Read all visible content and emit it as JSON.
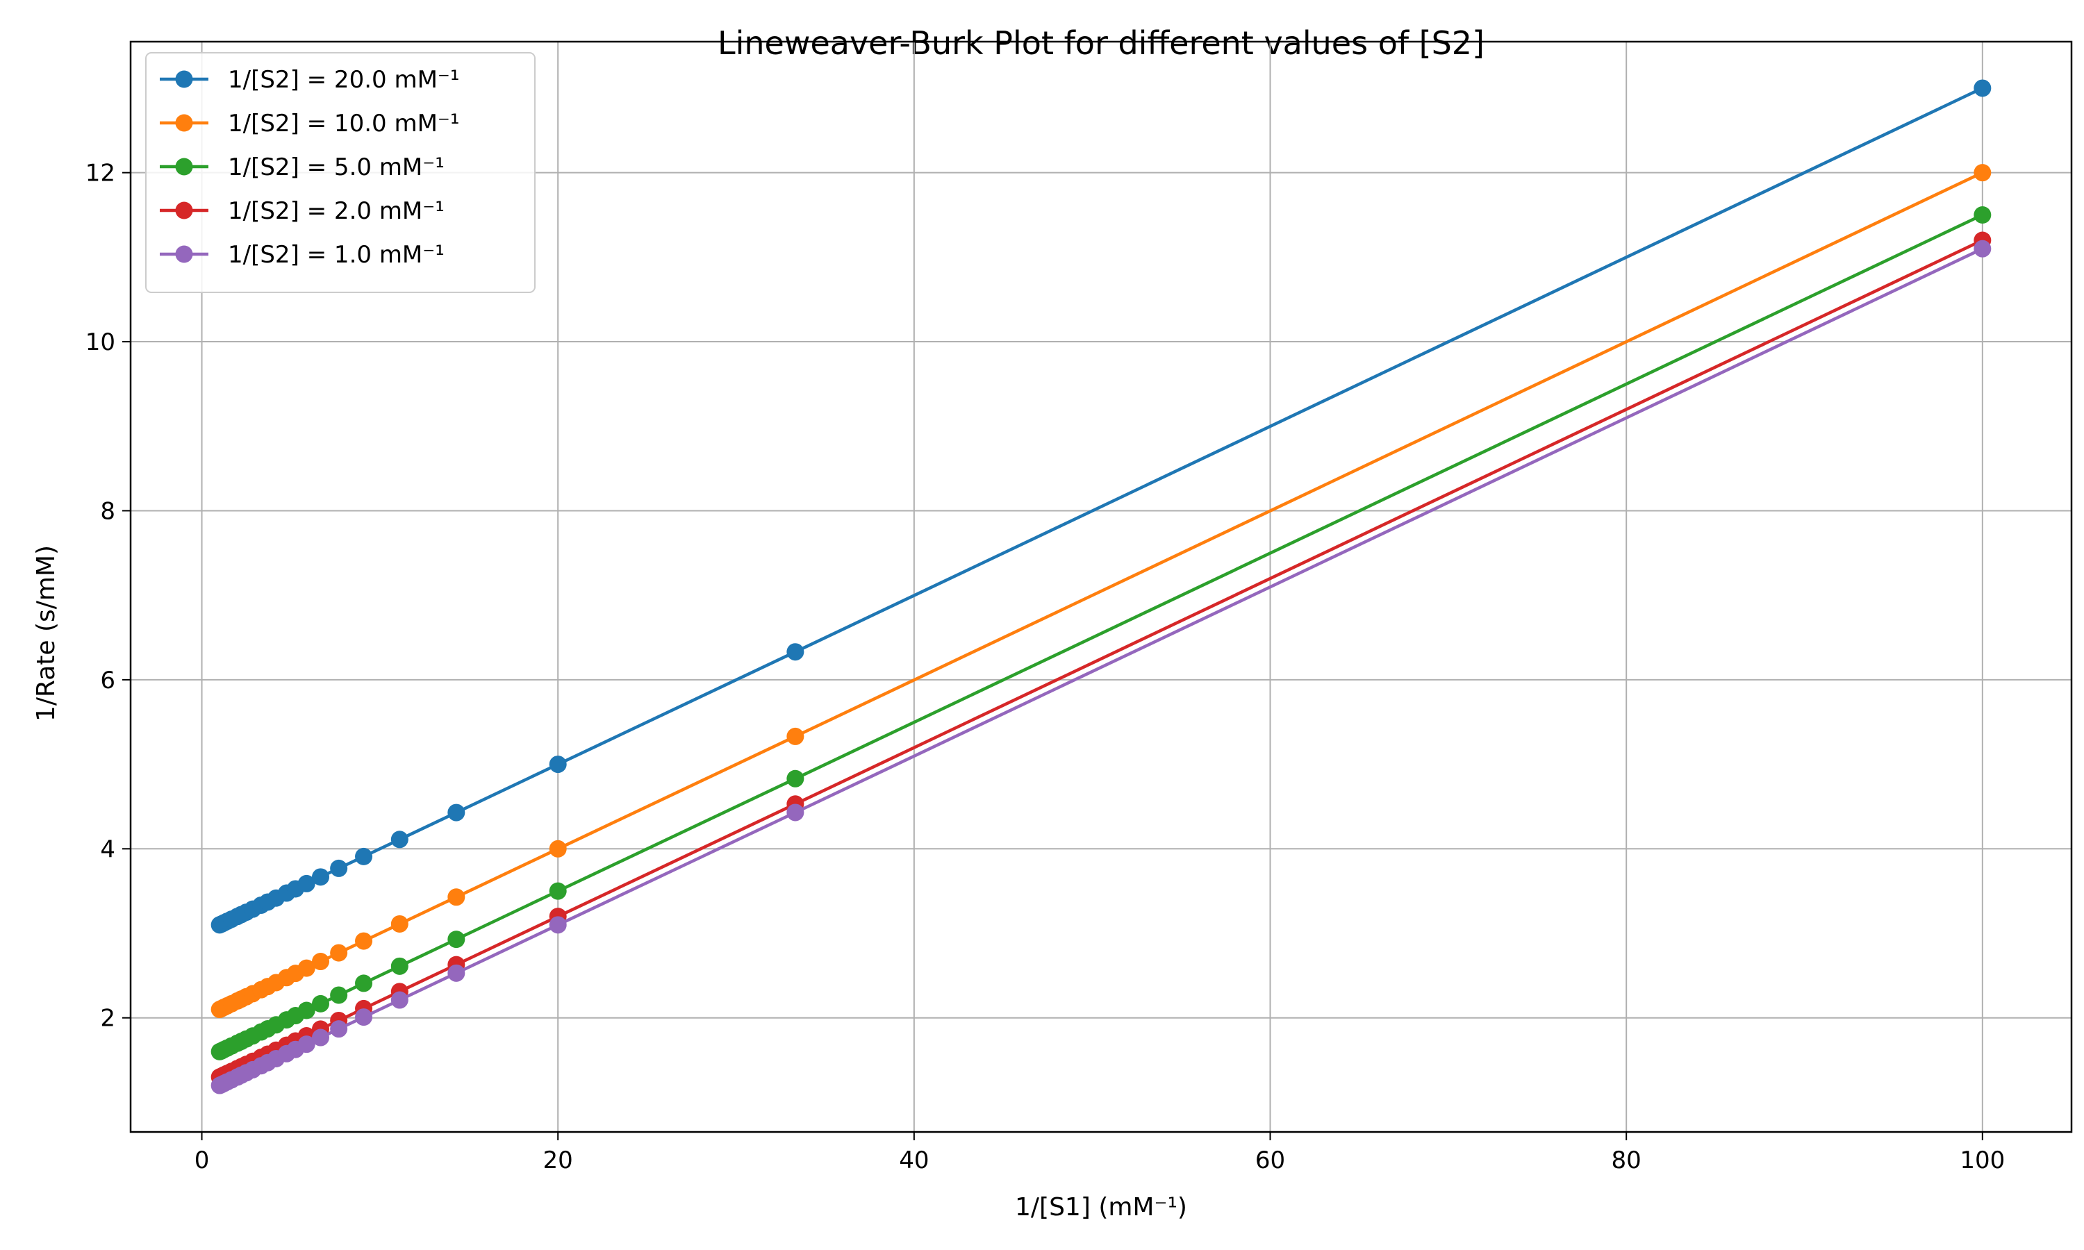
{
  "chart_data": {
    "type": "line",
    "title": "Lineweaver-Burk Plot for different values of [S2]",
    "xlabel": "1/[S1] (mM⁻¹)",
    "ylabel": "1/Rate (s/mM)",
    "xlim": [
      -4,
      105
    ],
    "ylim": [
      0.65,
      13.55
    ],
    "xticks": [
      0,
      20,
      40,
      60,
      80,
      100
    ],
    "yticks": [
      2,
      4,
      6,
      8,
      10,
      12
    ],
    "grid": true,
    "legend_position": "top-left",
    "x": [
      1.0,
      1.11,
      1.25,
      1.43,
      1.67,
      2.0,
      2.22,
      2.5,
      2.86,
      3.33,
      3.7,
      4.17,
      4.76,
      5.26,
      5.88,
      6.67,
      7.69,
      9.09,
      11.11,
      14.29,
      20.0,
      33.33,
      100.0
    ],
    "series": [
      {
        "name": "1/[S2] = 20.0 mM⁻¹",
        "color": "#1f77b4",
        "values": [
          3.1,
          3.11,
          3.125,
          3.143,
          3.167,
          3.2,
          3.222,
          3.25,
          3.286,
          3.333,
          3.37,
          3.417,
          3.476,
          3.526,
          3.588,
          3.667,
          3.769,
          3.909,
          4.111,
          4.429,
          5.0,
          6.33,
          13.0
        ]
      },
      {
        "name": "1/[S2] = 10.0 mM⁻¹",
        "color": "#ff7f0e",
        "values": [
          2.1,
          2.11,
          2.125,
          2.143,
          2.167,
          2.2,
          2.222,
          2.25,
          2.286,
          2.333,
          2.37,
          2.417,
          2.476,
          2.526,
          2.588,
          2.667,
          2.769,
          2.909,
          3.111,
          3.429,
          4.0,
          5.33,
          12.0
        ]
      },
      {
        "name": "1/[S2] = 5.0 mM⁻¹",
        "color": "#2ca02c",
        "values": [
          1.6,
          1.61,
          1.625,
          1.643,
          1.667,
          1.7,
          1.722,
          1.75,
          1.786,
          1.833,
          1.87,
          1.917,
          1.976,
          2.026,
          2.088,
          2.167,
          2.269,
          2.409,
          2.611,
          2.929,
          3.5,
          4.83,
          11.5
        ]
      },
      {
        "name": "1/[S2] = 2.0 mM⁻¹",
        "color": "#d62728",
        "values": [
          1.3,
          1.31,
          1.325,
          1.343,
          1.367,
          1.4,
          1.422,
          1.45,
          1.486,
          1.533,
          1.57,
          1.617,
          1.676,
          1.726,
          1.788,
          1.867,
          1.969,
          2.109,
          2.311,
          2.629,
          3.2,
          4.53,
          11.2
        ]
      },
      {
        "name": "1/[S2] = 1.0 mM⁻¹",
        "color": "#9467bd",
        "values": [
          1.2,
          1.21,
          1.225,
          1.243,
          1.267,
          1.3,
          1.322,
          1.35,
          1.386,
          1.433,
          1.47,
          1.517,
          1.576,
          1.626,
          1.688,
          1.767,
          1.869,
          2.009,
          2.211,
          2.529,
          3.1,
          4.43,
          11.1
        ]
      }
    ]
  }
}
